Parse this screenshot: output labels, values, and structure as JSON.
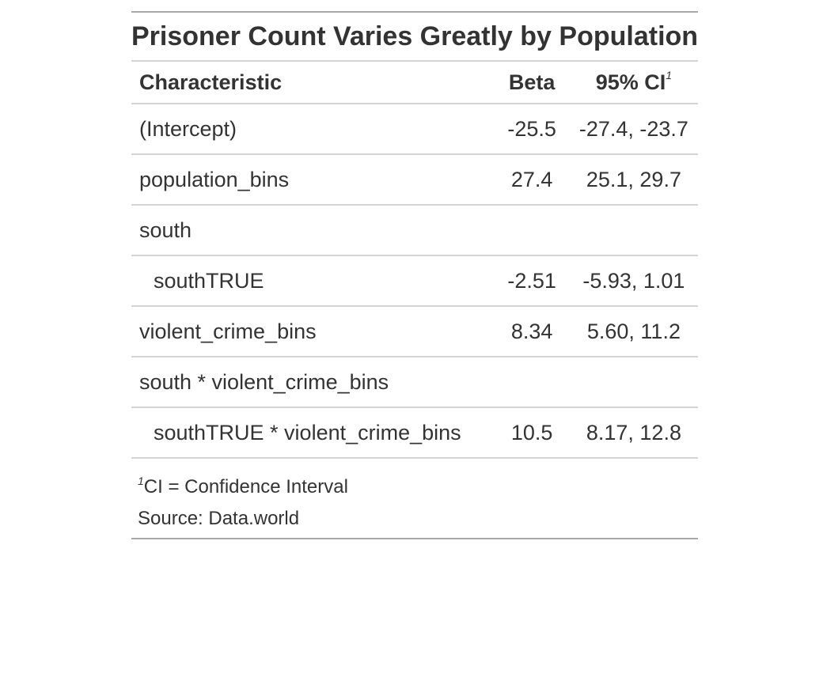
{
  "table": {
    "title": "Prisoner Count Varies Greatly by Population",
    "headers": {
      "characteristic": "Characteristic",
      "beta": "Beta",
      "ci": "95% CI",
      "ci_footnote_mark": "1"
    },
    "rows": [
      {
        "label": "(Intercept)",
        "beta": "-25.5",
        "ci": "-27.4, -23.7"
      },
      {
        "label": "population_bins",
        "beta": "27.4",
        "ci": "25.1, 29.7"
      },
      {
        "label": "south",
        "beta": "",
        "ci": ""
      },
      {
        "label": "southTRUE",
        "beta": "-2.51",
        "ci": "-5.93, 1.01"
      },
      {
        "label": "violent_crime_bins",
        "beta": "8.34",
        "ci": "5.60, 11.2"
      },
      {
        "label": "south * violent_crime_bins",
        "beta": "",
        "ci": ""
      },
      {
        "label": "southTRUE * violent_crime_bins",
        "beta": "10.5",
        "ci": "8.17, 12.8"
      }
    ],
    "footnote": {
      "mark": "1",
      "text": "CI = Confidence Interval"
    },
    "source_note": "Source: Data.world",
    "colors": {
      "text": "#333333",
      "outer_rule": "#a8a8a8",
      "inner_rule": "#d3d3d3"
    }
  }
}
